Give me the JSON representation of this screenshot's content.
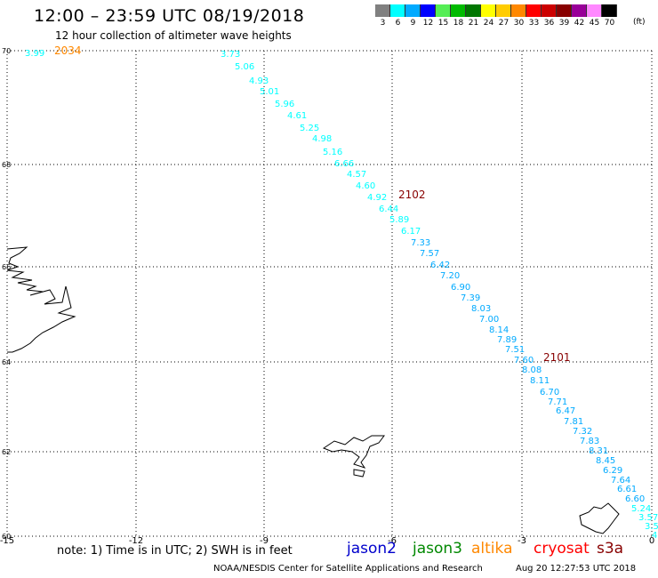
{
  "title": "12:00 – 23:59 UTC 08/19/2018",
  "subtitle": "12 hour collection of altimeter wave heights",
  "legend": {
    "labels": [
      "3",
      "6",
      "9",
      "12",
      "15",
      "18",
      "21",
      "24",
      "27",
      "30",
      "33",
      "36",
      "39",
      "42",
      "45",
      "70"
    ],
    "unit": "(ft)",
    "colors": [
      "#808080",
      "#00ffff",
      "#00aaff",
      "#0000ff",
      "#55ee55",
      "#00bb00",
      "#007700",
      "#ffff00",
      "#ffcc00",
      "#ff8800",
      "#ff0000",
      "#cc0000",
      "#880000",
      "#990099",
      "#ff88ff",
      "#000000"
    ]
  },
  "axes": {
    "x_ticks": [
      "-15",
      "-12",
      "-9",
      "-6",
      "-3",
      "0"
    ],
    "y_ticks": [
      "70",
      "68",
      "66",
      "64",
      "62",
      "60"
    ]
  },
  "pass_labels": [
    {
      "text": "2034",
      "color": "#ff8800"
    },
    {
      "text": "2102",
      "color": "#880000"
    },
    {
      "text": "2101",
      "color": "#880000"
    }
  ],
  "points": [
    {
      "v": "3.99",
      "c": "#00ffff"
    },
    {
      "v": "3.73",
      "c": "#00ffff"
    },
    {
      "v": "5.06",
      "c": "#00ffff"
    },
    {
      "v": "4.93",
      "c": "#00ffff"
    },
    {
      "v": "5.01",
      "c": "#00ffff"
    },
    {
      "v": "5.96",
      "c": "#00ffff"
    },
    {
      "v": "4.61",
      "c": "#00ffff"
    },
    {
      "v": "5.25",
      "c": "#00ffff"
    },
    {
      "v": "4.98",
      "c": "#00ffff"
    },
    {
      "v": "5.16",
      "c": "#00ffff"
    },
    {
      "v": "6.66",
      "c": "#00ffff"
    },
    {
      "v": "4.57",
      "c": "#00ffff"
    },
    {
      "v": "4.60",
      "c": "#00ffff"
    },
    {
      "v": "4.92",
      "c": "#00ffff"
    },
    {
      "v": "6.44",
      "c": "#00ffff"
    },
    {
      "v": "5.89",
      "c": "#00ffff"
    },
    {
      "v": "6.17",
      "c": "#00ffff"
    },
    {
      "v": "7.33",
      "c": "#00aaff"
    },
    {
      "v": "7.57",
      "c": "#00aaff"
    },
    {
      "v": "6.42",
      "c": "#00aaff"
    },
    {
      "v": "7.20",
      "c": "#00aaff"
    },
    {
      "v": "6.90",
      "c": "#00aaff"
    },
    {
      "v": "7.39",
      "c": "#00aaff"
    },
    {
      "v": "8.03",
      "c": "#00aaff"
    },
    {
      "v": "7.00",
      "c": "#00aaff"
    },
    {
      "v": "8.14",
      "c": "#00aaff"
    },
    {
      "v": "7.89",
      "c": "#00aaff"
    },
    {
      "v": "7.51",
      "c": "#00aaff"
    },
    {
      "v": "7.60",
      "c": "#00aaff"
    },
    {
      "v": "8.08",
      "c": "#00aaff"
    },
    {
      "v": "8.11",
      "c": "#00aaff"
    },
    {
      "v": "6.70",
      "c": "#00aaff"
    },
    {
      "v": "7.71",
      "c": "#00aaff"
    },
    {
      "v": "6.47",
      "c": "#00aaff"
    },
    {
      "v": "7.81",
      "c": "#00aaff"
    },
    {
      "v": "7.32",
      "c": "#00aaff"
    },
    {
      "v": "7.83",
      "c": "#00aaff"
    },
    {
      "v": "8.31",
      "c": "#00aaff"
    },
    {
      "v": "8.45",
      "c": "#00aaff"
    },
    {
      "v": "6.29",
      "c": "#00aaff"
    },
    {
      "v": "7.64",
      "c": "#00aaff"
    },
    {
      "v": "6.61",
      "c": "#00aaff"
    },
    {
      "v": "6.60",
      "c": "#00aaff"
    },
    {
      "v": "5.24",
      "c": "#00ffff"
    },
    {
      "v": "3.57",
      "c": "#00ffff"
    },
    {
      "v": "3.5",
      "c": "#00ffff"
    },
    {
      "v": "4",
      "c": "#00ffff"
    }
  ],
  "note": "note:  1) Time is in UTC; 2) SWH is in feet",
  "satellites": [
    {
      "name": "jason2",
      "color": "#0000cc"
    },
    {
      "name": "jason3",
      "color": "#008800"
    },
    {
      "name": "altika",
      "color": "#ff8800"
    },
    {
      "name": "cryosat",
      "color": "#ff0000"
    },
    {
      "name": "s3a",
      "color": "#880000"
    }
  ],
  "footer": {
    "credit": "NOAA/NESDIS Center for Satellite Applications and Research",
    "timestamp": "Aug 20 12:27:53 UTC 2018"
  }
}
